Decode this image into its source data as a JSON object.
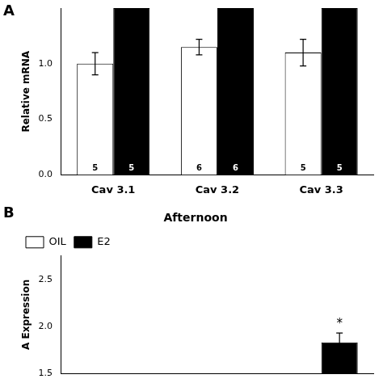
{
  "chart_data": [
    {
      "type": "bar",
      "panel_label": "A",
      "categories": [
        "Cav 3.1",
        "Cav 3.2",
        "Cav 3.3"
      ],
      "series": [
        {
          "name": "OIL",
          "color": "white",
          "values": [
            1.0,
            1.15,
            1.1
          ],
          "errors": [
            0.1,
            0.07,
            0.12
          ],
          "n": [
            5,
            6,
            5
          ]
        },
        {
          "name": "E2",
          "color": "black",
          "values": [
            1.5,
            1.5,
            1.5
          ],
          "n": [
            5,
            6,
            5
          ]
        }
      ],
      "ylabel": "Relative mRNA",
      "ylim": [
        0.0,
        1.5
      ],
      "yticks": [
        {
          "value": 0.0,
          "label": "0.0"
        },
        0.5,
        {
          "value": 1.0,
          "label": "1.0"
        }
      ],
      "grid": false
    },
    {
      "type": "bar",
      "panel_label": "B",
      "title": "Afternoon",
      "categories": [
        null,
        null,
        null
      ],
      "series": [
        {
          "name": "OIL",
          "color": "white",
          "values": [
            null,
            null,
            null
          ]
        },
        {
          "name": "E2",
          "color": "black",
          "values": [
            null,
            null,
            1.83
          ],
          "errors": [
            null,
            null,
            0.1
          ],
          "significance": [
            null,
            null,
            "*"
          ]
        }
      ],
      "ylabel": "A Expression",
      "ylim": [
        1.5,
        2.75
      ],
      "yticks": [
        1.5,
        {
          "value": 2.0,
          "label": "2.0"
        },
        2.5
      ],
      "grid": false,
      "legend": "upper left",
      "tick_labels": "y"
    }
  ]
}
